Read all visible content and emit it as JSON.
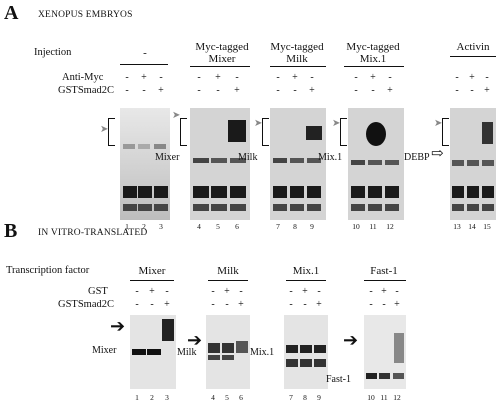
{
  "panelA": {
    "letter": "A",
    "title": "XENOPUS EMBRYOS",
    "row_labels": {
      "injection": "Injection",
      "anti": "Anti-Myc",
      "gst": "GSTSmad2C"
    },
    "groups": [
      {
        "header": "-",
        "anti": [
          "-",
          "+",
          "-"
        ],
        "gst": [
          "-",
          "-",
          "+"
        ],
        "lanes": [
          "1",
          "2",
          "3"
        ],
        "side_label": ""
      },
      {
        "header": "Myc-tagged Mixer",
        "header_l1": "Myc-tagged",
        "header_l2": "Mixer",
        "anti": [
          "-",
          "+",
          "-"
        ],
        "gst": [
          "-",
          "-",
          "+"
        ],
        "lanes": [
          "4",
          "5",
          "6"
        ],
        "side_label": "Mixer"
      },
      {
        "header": "Myc-tagged Milk",
        "header_l1": "Myc-tagged",
        "header_l2": "Milk",
        "anti": [
          "-",
          "+",
          "-"
        ],
        "gst": [
          "-",
          "-",
          "+"
        ],
        "lanes": [
          "7",
          "8",
          "9"
        ],
        "side_label": "Milk"
      },
      {
        "header": "Myc-tagged Mix.1",
        "header_l1": "Myc-tagged",
        "header_l2": "Mix.1",
        "anti": [
          "-",
          "+",
          "-"
        ],
        "gst": [
          "-",
          "-",
          "+"
        ],
        "lanes": [
          "10",
          "11",
          "12"
        ],
        "side_label": "Mix.1"
      },
      {
        "header": "Activin",
        "anti": [
          "-",
          "+",
          "-"
        ],
        "gst": [
          "-",
          "-",
          "+"
        ],
        "lanes": [
          "13",
          "14",
          "15"
        ],
        "side_label": "DEBP"
      }
    ]
  },
  "panelB": {
    "letter": "B",
    "title": "IN VITRO-TRANSLATED",
    "row_labels": {
      "tf": "Transcription factor",
      "gst": "GST",
      "gstsmad": "GSTSmad2C"
    },
    "groups": [
      {
        "header": "Mixer",
        "gst": [
          "-",
          "+",
          "-"
        ],
        "gstsmad": [
          "-",
          "-",
          "+"
        ],
        "lanes": [
          "1",
          "2",
          "3"
        ],
        "side_label": "Mixer"
      },
      {
        "header": "Milk",
        "gst": [
          "-",
          "+",
          "-"
        ],
        "gstsmad": [
          "-",
          "-",
          "+"
        ],
        "lanes": [
          "4",
          "5",
          "6"
        ],
        "side_label": "Milk"
      },
      {
        "header": "Mix.1",
        "gst": [
          "-",
          "+",
          "-"
        ],
        "gstsmad": [
          "-",
          "-",
          "+"
        ],
        "lanes": [
          "7",
          "8",
          "9"
        ],
        "side_label": "Mix.1"
      },
      {
        "header": "Fast-1",
        "gst": [
          "-",
          "+",
          "-"
        ],
        "gstsmad": [
          "-",
          "-",
          "+"
        ],
        "lanes": [
          "10",
          "11",
          "12"
        ],
        "side_label": "Fast-1"
      }
    ]
  },
  "colors": {
    "ink": "#111111",
    "gel_bg": "#d9d9d9",
    "band": "#1a1a1a",
    "arrow_grey": "#888888"
  }
}
